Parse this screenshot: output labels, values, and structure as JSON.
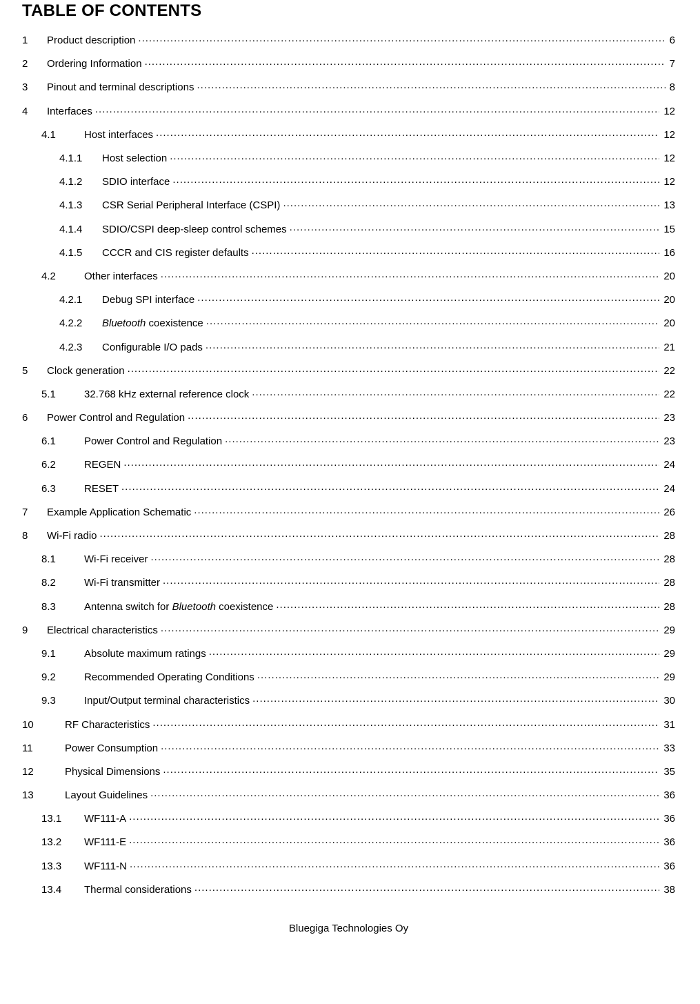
{
  "title": "TABLE OF CONTENTS",
  "footer": "Bluegiga Technologies Oy",
  "entries": [
    {
      "level": 1,
      "num": "1",
      "label": "Product description",
      "page": "6"
    },
    {
      "level": 1,
      "num": "2",
      "label": "Ordering Information",
      "page": "7"
    },
    {
      "level": 1,
      "num": "3",
      "label": "Pinout and terminal descriptions ",
      "page": "8"
    },
    {
      "level": 1,
      "num": "4",
      "label": "Interfaces",
      "page": "12"
    },
    {
      "level": 2,
      "num": "4.1",
      "label": "Host interfaces",
      "page": "12"
    },
    {
      "level": 3,
      "num": "4.1.1",
      "label": "Host selection ",
      "page": "12"
    },
    {
      "level": 3,
      "num": "4.1.2",
      "label": "SDIO interface ",
      "page": "12"
    },
    {
      "level": 3,
      "num": "4.1.3",
      "label": "CSR Serial Peripheral Interface (CSPI)",
      "page": "13"
    },
    {
      "level": 3,
      "num": "4.1.4",
      "label": "SDIO/CSPI deep-sleep control schemes ",
      "page": "15"
    },
    {
      "level": 3,
      "num": "4.1.5",
      "label": "CCCR and CIS register defaults",
      "page": "16"
    },
    {
      "level": 2,
      "num": "4.2",
      "label": "Other interfaces ",
      "page": "20"
    },
    {
      "level": 3,
      "num": "4.2.1",
      "label": "Debug SPI interface",
      "page": "20"
    },
    {
      "level": 3,
      "num": "4.2.2",
      "label": "",
      "label_parts": [
        {
          "text": "Bluetooth",
          "italic": true
        },
        {
          "text": " coexistence",
          "italic": false
        }
      ],
      "page": "20"
    },
    {
      "level": 3,
      "num": "4.2.3",
      "label": "Configurable I/O pads",
      "page": "21"
    },
    {
      "level": 1,
      "num": "5",
      "label": "Clock generation",
      "page": "22"
    },
    {
      "level": 2,
      "num": "5.1",
      "label": "32.768 kHz external reference clock ",
      "page": "22"
    },
    {
      "level": 1,
      "num": "6",
      "label": "Power Control and Regulation ",
      "page": "23"
    },
    {
      "level": 2,
      "num": "6.1",
      "label": "Power Control and Regulation",
      "page": "23"
    },
    {
      "level": 2,
      "num": "6.2",
      "label": "REGEN ",
      "page": "24"
    },
    {
      "level": 2,
      "num": "6.3",
      "label": "RESET",
      "page": "24"
    },
    {
      "level": 1,
      "num": "7",
      "label": "Example Application Schematic ",
      "page": "26"
    },
    {
      "level": 1,
      "num": "8",
      "label": "Wi-Fi radio ",
      "page": "28"
    },
    {
      "level": 2,
      "num": "8.1",
      "label": "Wi-Fi receiver",
      "page": "28"
    },
    {
      "level": 2,
      "num": "8.2",
      "label": "Wi-Fi transmitter ",
      "page": "28"
    },
    {
      "level": 2,
      "num": "8.3",
      "label": "",
      "label_parts": [
        {
          "text": "Antenna switch for ",
          "italic": false
        },
        {
          "text": "Bluetooth",
          "italic": true
        },
        {
          "text": " coexistence",
          "italic": false
        }
      ],
      "page": "28"
    },
    {
      "level": 1,
      "num": "9",
      "label": "Electrical characteristics",
      "page": "29"
    },
    {
      "level": 2,
      "num": "9.1",
      "label": "Absolute maximum ratings ",
      "page": "29"
    },
    {
      "level": 2,
      "num": "9.2",
      "label": "Recommended Operating Conditions ",
      "page": "29"
    },
    {
      "level": 2,
      "num": "9.3",
      "label": "Input/Output terminal characteristics ",
      "page": "30"
    },
    {
      "level": 1,
      "num": "10",
      "label": "RF Characteristics ",
      "wide": true,
      "page": "31"
    },
    {
      "level": 1,
      "num": "11",
      "label": "Power Consumption ",
      "wide": true,
      "page": "33"
    },
    {
      "level": 1,
      "num": "12",
      "label": "Physical Dimensions",
      "wide": true,
      "page": "35"
    },
    {
      "level": 1,
      "num": "13",
      "label": "Layout Guidelines ",
      "wide": true,
      "page": "36"
    },
    {
      "level": 2,
      "num": "13.1",
      "label": "WF111-A",
      "page": "36"
    },
    {
      "level": 2,
      "num": "13.2",
      "label": "WF111-E",
      "page": "36"
    },
    {
      "level": 2,
      "num": "13.3",
      "label": "WF111-N",
      "page": "36"
    },
    {
      "level": 2,
      "num": "13.4",
      "label": "Thermal considerations ",
      "page": "38"
    }
  ]
}
